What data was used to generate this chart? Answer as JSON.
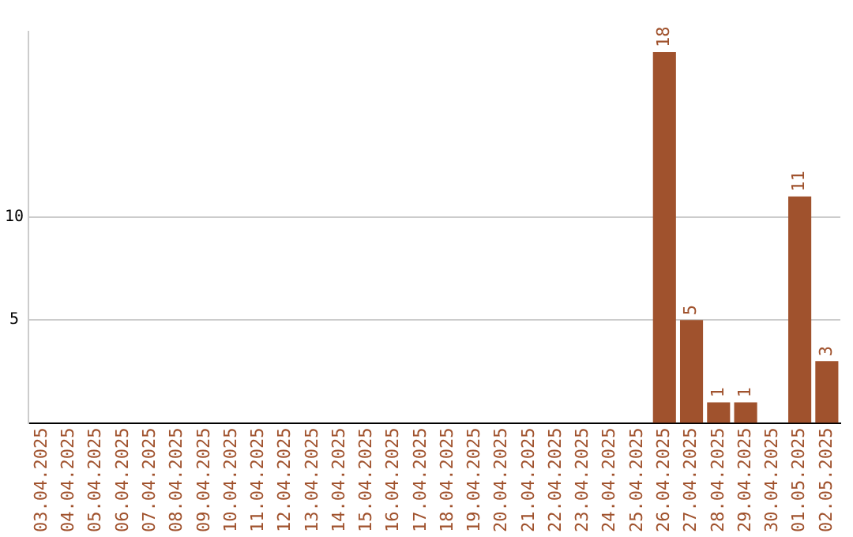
{
  "chart_data": {
    "type": "bar",
    "categories": [
      "03.04.2025",
      "04.04.2025",
      "05.04.2025",
      "06.04.2025",
      "07.04.2025",
      "08.04.2025",
      "09.04.2025",
      "10.04.2025",
      "11.04.2025",
      "12.04.2025",
      "13.04.2025",
      "14.04.2025",
      "15.04.2025",
      "16.04.2025",
      "17.04.2025",
      "18.04.2025",
      "19.04.2025",
      "20.04.2025",
      "21.04.2025",
      "22.04.2025",
      "23.04.2025",
      "24.04.2025",
      "25.04.2025",
      "26.04.2025",
      "27.04.2025",
      "28.04.2025",
      "29.04.2025",
      "30.04.2025",
      "01.05.2025",
      "02.05.2025"
    ],
    "values": [
      0,
      0,
      0,
      0,
      0,
      0,
      0,
      0,
      0,
      0,
      0,
      0,
      0,
      0,
      0,
      0,
      0,
      0,
      0,
      0,
      0,
      0,
      0,
      18,
      5,
      1,
      1,
      0,
      11,
      3
    ],
    "value_labels": [
      null,
      null,
      null,
      null,
      null,
      null,
      null,
      null,
      null,
      null,
      null,
      null,
      null,
      null,
      null,
      null,
      null,
      null,
      null,
      null,
      null,
      null,
      null,
      "18",
      "5",
      "1",
      "1",
      null,
      "11",
      "3"
    ],
    "color": "#a0522d",
    "ylim": [
      0,
      19
    ],
    "yticks": [
      5,
      10
    ],
    "grid": "y",
    "legend": false
  }
}
